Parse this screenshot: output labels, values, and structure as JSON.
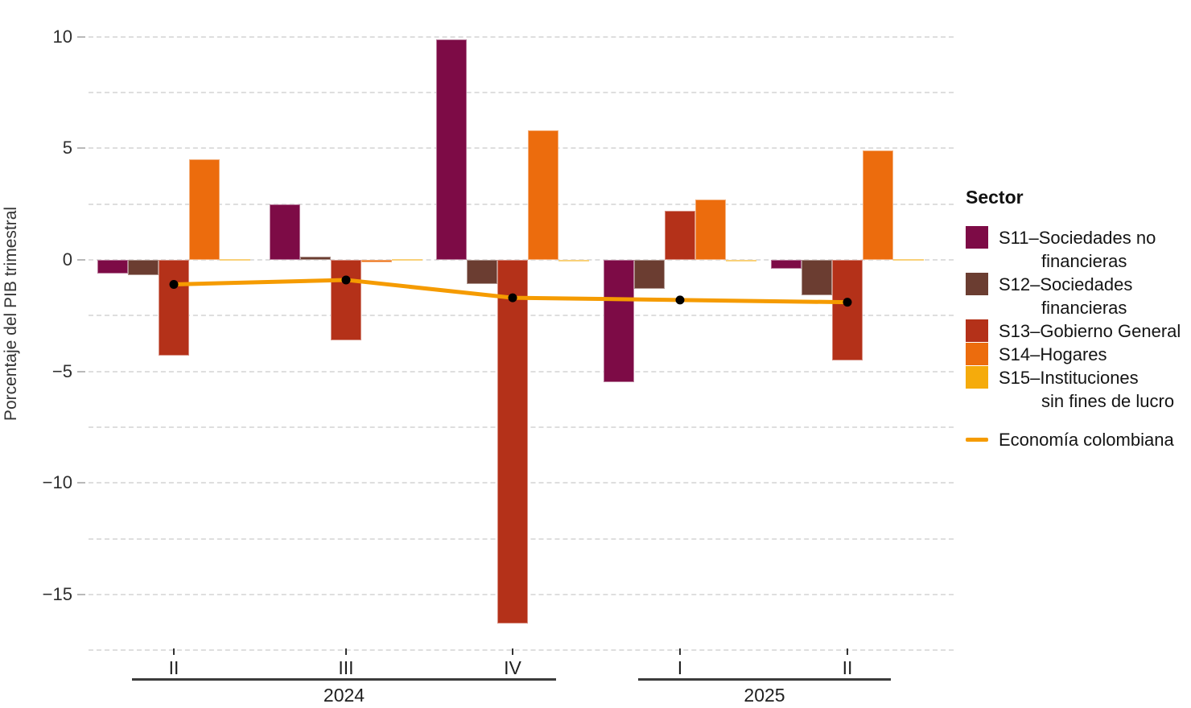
{
  "y_axis": {
    "title": "Porcentaje del PIB trimestral",
    "tick_labels": [
      "10",
      "5",
      "0",
      "−5",
      "−10",
      "−15"
    ],
    "tick_values": [
      10,
      5,
      0,
      -5,
      -10,
      -15
    ]
  },
  "x_axis": {
    "quarter_labels": [
      "II",
      "III",
      "IV",
      "I",
      "II"
    ],
    "year_labels": [
      "2024",
      "2025"
    ]
  },
  "legend": {
    "title": "Sector",
    "items": [
      {
        "color": "#7d0b46",
        "lines": [
          "S11–Sociedades no",
          "financieras"
        ]
      },
      {
        "color": "#6b3d31",
        "lines": [
          "S12–Sociedades",
          "financieras"
        ]
      },
      {
        "color": "#b43119",
        "lines": [
          "S13–Gobierno General"
        ]
      },
      {
        "color": "#ec6c0d",
        "lines": [
          "S14–Hogares"
        ]
      },
      {
        "color": "#f5ab0c",
        "lines": [
          "S15–Instituciones",
          "sin fines de lucro"
        ]
      }
    ],
    "line_item": {
      "color": "#f59b00",
      "label": "Economía colombiana"
    }
  },
  "chart_data": {
    "type": "bar",
    "title": "",
    "xlabel": "",
    "ylabel": "Porcentaje del PIB trimestral",
    "categories": [
      "2024-II",
      "2024-III",
      "2024-IV",
      "2025-I",
      "2025-II"
    ],
    "year_groups": [
      {
        "label": "2024",
        "quarter_indexes": [
          0,
          1,
          2
        ]
      },
      {
        "label": "2025",
        "quarter_indexes": [
          3,
          4
        ]
      }
    ],
    "series": [
      {
        "name": "S11–Sociedades no financieras",
        "color": "#7d0b46",
        "values": [
          -0.6,
          2.5,
          9.9,
          -5.5,
          -0.4
        ]
      },
      {
        "name": "S12–Sociedades financieras",
        "color": "#6b3d31",
        "values": [
          -0.7,
          0.15,
          -1.1,
          -1.3,
          -1.6
        ]
      },
      {
        "name": "S13–Gobierno General",
        "color": "#b43119",
        "values": [
          -4.3,
          -3.6,
          -16.3,
          2.2,
          -4.5
        ]
      },
      {
        "name": "S14–Hogares",
        "color": "#ec6c0d",
        "values": [
          4.5,
          -0.1,
          5.8,
          2.7,
          4.9
        ]
      },
      {
        "name": "S15–Instituciones sin fines de lucro",
        "color": "#f5ab0c",
        "values": [
          0.05,
          0.05,
          -0.05,
          -0.05,
          0.05
        ]
      }
    ],
    "line_series": {
      "name": "Economía colombiana",
      "color": "#f59b00",
      "point_color": "#000000",
      "values": [
        -1.1,
        -0.9,
        -1.7,
        -1.8,
        -1.9
      ]
    },
    "ylim": [
      -17.5,
      10
    ],
    "gridline_step": 2.5,
    "grid": "horizontal-dashed",
    "legend_position": "right"
  }
}
